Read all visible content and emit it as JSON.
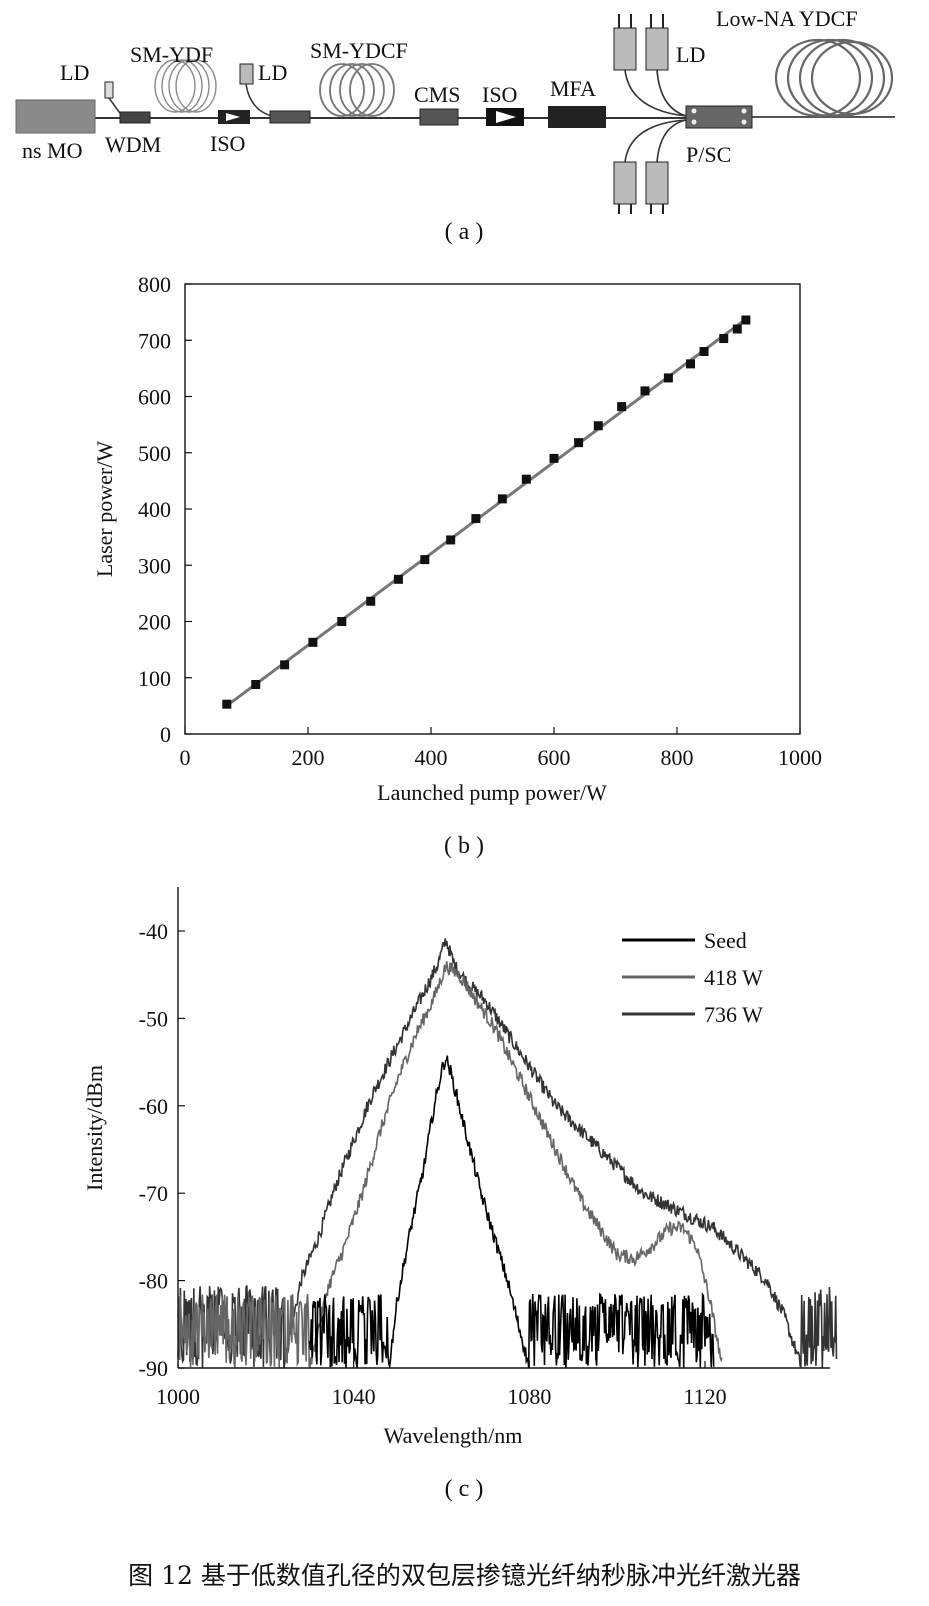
{
  "diagram_a": {
    "caption": "( a )",
    "labels": {
      "ns_mo": "ns MO",
      "ld1": "LD",
      "wdm": "WDM",
      "sm_ydf": "SM-YDF",
      "iso1": "ISO",
      "ld2": "LD",
      "sm_ydcf": "SM-YDCF",
      "cms": "CMS",
      "iso2": "ISO",
      "mfa": "MFA",
      "ld3": "LD",
      "psc": "P/SC",
      "low_na_ydcf": "Low-NA YDCF"
    }
  },
  "chart_data": [
    {
      "type": "scatter",
      "caption": "( b )",
      "xlabel": "Launched pump power/W",
      "ylabel": "Laser power/W",
      "xlim": [
        0,
        1000
      ],
      "ylim": [
        0,
        800
      ],
      "xticks": [
        0,
        200,
        400,
        600,
        800,
        1000
      ],
      "yticks": [
        0,
        100,
        200,
        300,
        400,
        500,
        600,
        700,
        800
      ],
      "fit_line": true,
      "series": [
        {
          "x": [
            68,
            115,
            162,
            208,
            255,
            302,
            347,
            390,
            432,
            473,
            516,
            555,
            600,
            640,
            672,
            710,
            748,
            786,
            822,
            844,
            876,
            898,
            912
          ],
          "y": [
            53,
            88,
            123,
            163,
            200,
            236,
            275,
            310,
            345,
            383,
            418,
            453,
            490,
            518,
            548,
            582,
            610,
            633,
            658,
            680,
            703,
            720,
            736
          ]
        }
      ]
    },
    {
      "type": "line",
      "caption": "( c )",
      "xlabel": "Wavelength/nm",
      "ylabel": "Intensity/dBm",
      "xlim": [
        1000,
        1150
      ],
      "ylim": [
        -90,
        -35
      ],
      "xticks": [
        1000,
        1040,
        1080,
        1120
      ],
      "yticks": [
        -90,
        -80,
        -70,
        -60,
        -50,
        -40
      ],
      "legend_position": "top-right",
      "series": [
        {
          "name": "Seed",
          "color": "#000000",
          "x": [
            1048,
            1050,
            1053,
            1056,
            1058,
            1060,
            1061,
            1062,
            1064,
            1066,
            1069,
            1072,
            1075,
            1078,
            1080
          ],
          "y": [
            -90,
            -82,
            -74,
            -67,
            -61,
            -56,
            -54.5,
            -56,
            -60,
            -64,
            -70,
            -75,
            -80,
            -86,
            -90
          ],
          "floor": -83,
          "noise_range": [
            1030,
            1122
          ]
        },
        {
          "name": "418 W",
          "color": "#666666",
          "x": [
            1030,
            1034,
            1038,
            1042,
            1046,
            1050,
            1054,
            1058,
            1061,
            1064,
            1068,
            1072,
            1076,
            1080,
            1084,
            1088,
            1092,
            1096,
            1100,
            1104,
            1108,
            1112,
            1115,
            1118,
            1121,
            1124
          ],
          "y": [
            -90,
            -81,
            -76,
            -70,
            -63,
            -57,
            -52,
            -48,
            -44,
            -45,
            -48,
            -51,
            -55,
            -59,
            -63,
            -67,
            -71,
            -74,
            -77,
            -77.5,
            -76,
            -74,
            -74,
            -76,
            -82,
            -90
          ],
          "floor": -83,
          "noise_range": [
            1000,
            1124
          ]
        },
        {
          "name": "736 W",
          "color": "#333333",
          "x": [
            1024,
            1028,
            1032,
            1036,
            1040,
            1044,
            1048,
            1052,
            1056,
            1059,
            1061,
            1063,
            1066,
            1070,
            1074,
            1078,
            1082,
            1086,
            1090,
            1094,
            1098,
            1102,
            1106,
            1110,
            1114,
            1118,
            1122,
            1126,
            1130,
            1134,
            1138,
            1142
          ],
          "y": [
            -90,
            -80,
            -75,
            -69,
            -64,
            -59,
            -55,
            -51,
            -47,
            -44,
            -41,
            -44,
            -46,
            -48,
            -51,
            -54,
            -57,
            -60,
            -62,
            -64,
            -66,
            -68,
            -70,
            -71,
            -72,
            -73,
            -74,
            -76,
            -78,
            -80,
            -84,
            -90
          ],
          "floor": -82,
          "noise_range": [
            1000,
            1150
          ]
        }
      ]
    }
  ],
  "figure_caption": "图 12   基于低数值孔径的双包层掺镱光纤纳秒脉冲光纤激光器"
}
